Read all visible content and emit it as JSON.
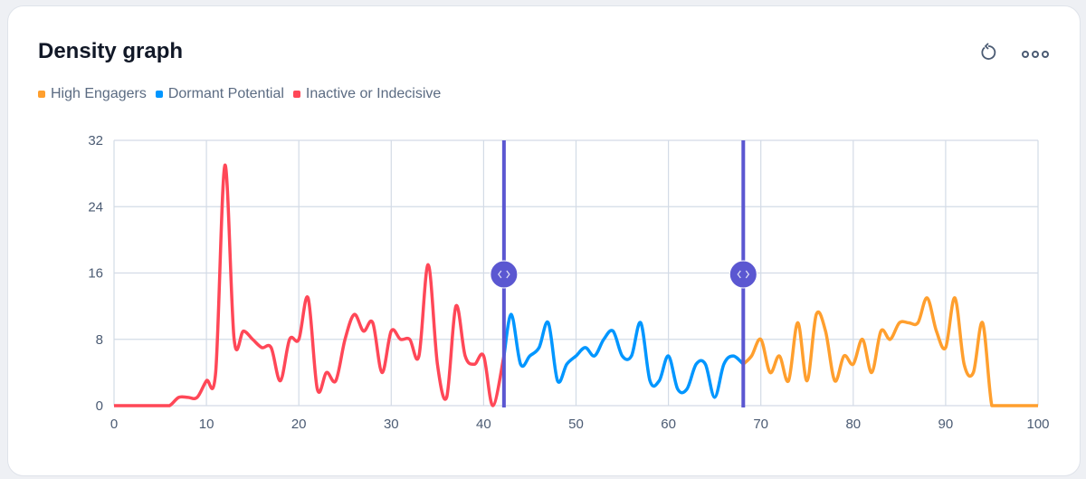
{
  "title": "Density graph",
  "header_icons": [
    "refresh-icon",
    "more-options-icon"
  ],
  "legend": [
    {
      "label": "High Engagers",
      "color": "#ff9f2e"
    },
    {
      "label": "Dormant Potential",
      "color": "#0096ff"
    },
    {
      "label": "Inactive or Indecisive",
      "color": "#ff4757"
    }
  ],
  "handle_color": "#5b57d1",
  "chart_data": {
    "type": "line",
    "title": "Density graph",
    "xlim": [
      0,
      100
    ],
    "ylim": [
      0,
      32
    ],
    "x_ticks": [
      "0",
      "10",
      "20",
      "30",
      "40",
      "50",
      "60",
      "70",
      "80",
      "90",
      "100"
    ],
    "y_ticks": [
      "0",
      "8",
      "16",
      "24",
      "32"
    ],
    "grid": true,
    "legend_position": "top-left",
    "range_handles": [
      42.2,
      68.1
    ],
    "series": [
      {
        "name": "Inactive or Indecisive",
        "color": "#ff4757",
        "x": [
          0,
          1,
          2,
          3,
          4,
          5,
          6,
          7,
          8,
          9,
          10,
          11,
          12,
          13,
          14,
          15,
          16,
          17,
          18,
          19,
          20,
          21,
          22,
          23,
          24,
          25,
          26,
          27,
          28,
          29,
          30,
          31,
          32,
          33,
          34,
          35,
          36,
          37,
          38,
          39,
          40,
          41,
          42.2
        ],
        "y": [
          0,
          0,
          0,
          0,
          0,
          0,
          0,
          1,
          1,
          1,
          3,
          4,
          29,
          8,
          9,
          8,
          7,
          7,
          3,
          8,
          8,
          13,
          2,
          4,
          3,
          8,
          11,
          9,
          10,
          4,
          9,
          8,
          8,
          6,
          17,
          5,
          1,
          12,
          6,
          5,
          6,
          0,
          6
        ]
      },
      {
        "name": "Dormant Potential",
        "color": "#0096ff",
        "x": [
          42.2,
          43,
          44,
          45,
          46,
          47,
          48,
          49,
          50,
          51,
          52,
          53,
          54,
          55,
          56,
          57,
          58,
          59,
          60,
          61,
          62,
          63,
          64,
          65,
          66,
          67,
          68.1
        ],
        "y": [
          6,
          11,
          5,
          6,
          7,
          10,
          3,
          5,
          6,
          7,
          6,
          8,
          9,
          6,
          6,
          10,
          3,
          3,
          6,
          2,
          2,
          5,
          5,
          1,
          5,
          6,
          5
        ]
      },
      {
        "name": "High Engagers",
        "color": "#ff9f2e",
        "x": [
          68.1,
          69,
          70,
          71,
          72,
          73,
          74,
          75,
          76,
          77,
          78,
          79,
          80,
          81,
          82,
          83,
          84,
          85,
          86,
          87,
          88,
          89,
          90,
          91,
          92,
          93,
          94,
          95,
          96,
          97,
          98,
          99,
          100
        ],
        "y": [
          5,
          6,
          8,
          4,
          6,
          3,
          10,
          3,
          11,
          9,
          3,
          6,
          5,
          8,
          4,
          9,
          8,
          10,
          10,
          10,
          13,
          9,
          7,
          13,
          5,
          4,
          10,
          0,
          0,
          0,
          0,
          0,
          0
        ]
      }
    ]
  }
}
